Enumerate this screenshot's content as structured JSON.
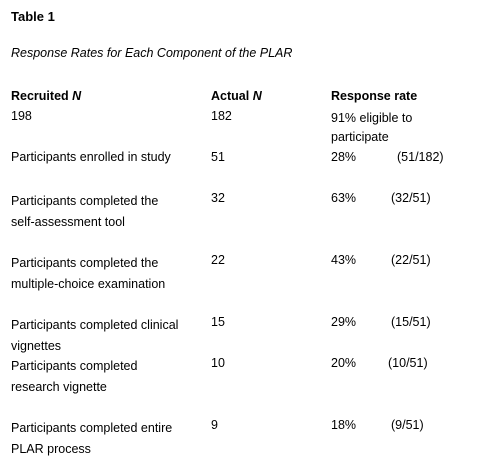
{
  "table_label": "Table 1",
  "caption": "Response Rates for Each Component of the PLAR",
  "headers": {
    "recruited": "Recruited",
    "actual": "Actual",
    "n": "N",
    "response_rate": "Response rate"
  },
  "rows": [
    {
      "label_lines": [
        "198"
      ],
      "actual": "182",
      "rate_lines": [
        "91% eligible to",
        "participate"
      ],
      "fraction": ""
    },
    {
      "label_lines": [
        "Participants enrolled in study"
      ],
      "actual": "51",
      "rate_lines": [
        "28%"
      ],
      "fraction": "(51/182)"
    },
    {
      "label_lines": [
        "Participants completed the",
        "self-assessment tool"
      ],
      "actual": "32",
      "rate_lines": [
        "63%"
      ],
      "fraction": "(32/51)"
    },
    {
      "label_lines": [
        "Participants completed the",
        "multiple-choice examination"
      ],
      "actual": "22",
      "rate_lines": [
        "43%"
      ],
      "fraction": "(22/51)"
    },
    {
      "label_lines": [
        "Participants completed clinical",
        "vignettes"
      ],
      "actual": "15",
      "rate_lines": [
        "29%"
      ],
      "fraction": "(15/51)"
    },
    {
      "label_lines": [
        "Participants completed",
        "research vignette"
      ],
      "actual": "10",
      "rate_lines": [
        "20%"
      ],
      "fraction": "(10/51)"
    },
    {
      "label_lines": [
        "Participants completed entire",
        "PLAR process"
      ],
      "actual": "9",
      "rate_lines": [
        "18%"
      ],
      "fraction": "(9/51)"
    }
  ]
}
